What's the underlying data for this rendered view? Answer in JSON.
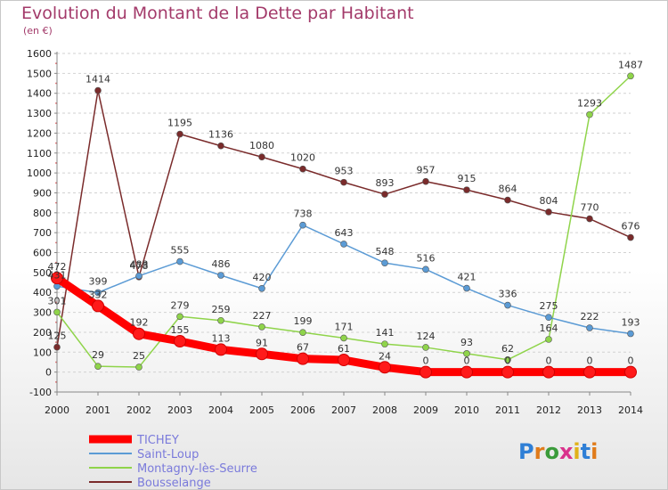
{
  "title": "Evolution du Montant de la Dette par Habitant",
  "subtitle": "(en €)",
  "logo_text": "Proxiti",
  "chart_data": {
    "type": "line",
    "title": "Evolution du Montant de la Dette par Habitant",
    "ylabel": "(en €)",
    "xlabel": "",
    "x": [
      "2000",
      "2001",
      "2002",
      "2003",
      "2004",
      "2005",
      "2006",
      "2007",
      "2008",
      "2009",
      "2010",
      "2011",
      "2012",
      "2013",
      "2014"
    ],
    "ylim": [
      -100,
      1600
    ],
    "yticks": [
      "-100",
      "0",
      "100",
      "200",
      "300",
      "400",
      "500",
      "600",
      "700",
      "800",
      "900",
      "1000",
      "1100",
      "1200",
      "1300",
      "1400",
      "1500",
      "1600"
    ],
    "grid": "horizontal dashed",
    "legend": "bottom-left",
    "series": [
      {
        "name": "TICHEY",
        "color": "#ff0000",
        "values": [
          472,
          332,
          192,
          155,
          113,
          91,
          67,
          61,
          24,
          0,
          0,
          0,
          0,
          0,
          0
        ]
      },
      {
        "name": "Saint-Loup",
        "color": "#5b9bd5",
        "values": [
          431,
          399,
          483,
          555,
          486,
          420,
          738,
          643,
          548,
          516,
          421,
          336,
          275,
          222,
          193
        ]
      },
      {
        "name": "Montagny-lès-Seurre",
        "color": "#8fd44a",
        "values": [
          301,
          29,
          25,
          279,
          259,
          227,
          199,
          171,
          141,
          124,
          93,
          62,
          164,
          1293,
          1487
        ]
      },
      {
        "name": "Bousselange",
        "color": "#7a2b2b",
        "values": [
          125,
          1414,
          478,
          1195,
          1136,
          1080,
          1020,
          953,
          893,
          957,
          915,
          864,
          804,
          770,
          676
        ]
      }
    ]
  }
}
